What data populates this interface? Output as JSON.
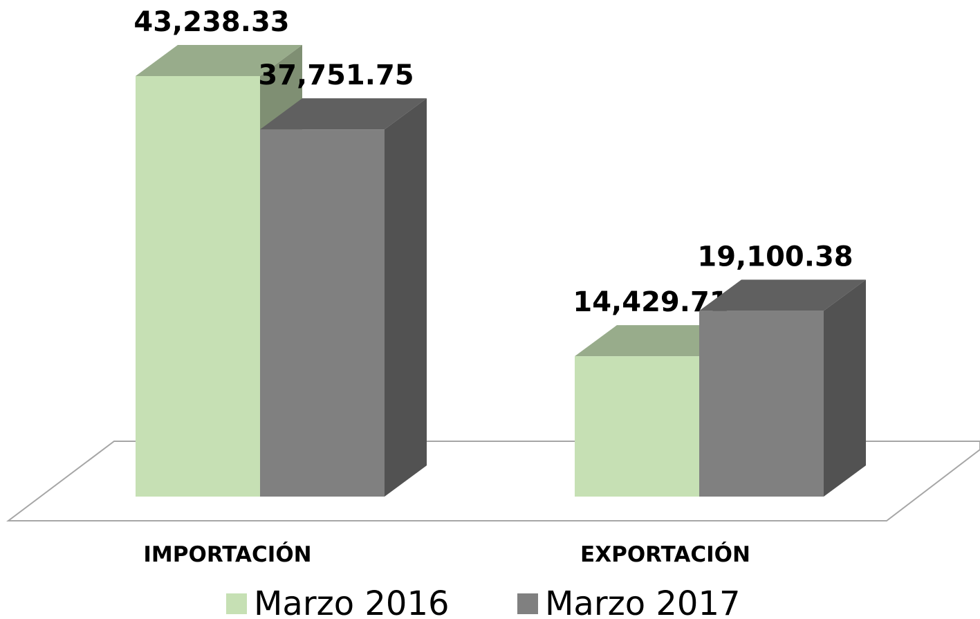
{
  "chart_data": {
    "type": "bar3d",
    "categories": [
      "IMPORTACIÓN",
      "EXPORTACIÓN"
    ],
    "series": [
      {
        "name": "Marzo 2016",
        "color": "#c6e0b4",
        "values": [
          43238.33,
          14429.71
        ],
        "value_labels": [
          "43,238.33",
          "14,429.71"
        ]
      },
      {
        "name": "Marzo 2017",
        "color": "#808080",
        "values": [
          37751.75,
          19100.38
        ],
        "value_labels": [
          "37,751.75",
          "19,100.38"
        ]
      }
    ]
  }
}
